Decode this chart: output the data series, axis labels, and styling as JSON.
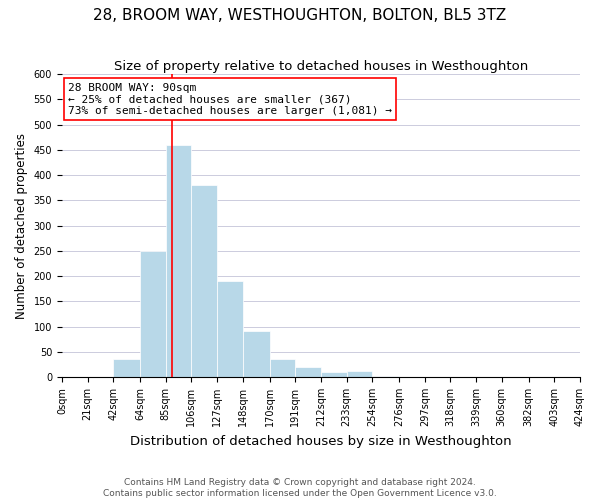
{
  "title": "28, BROOM WAY, WESTHOUGHTON, BOLTON, BL5 3TZ",
  "subtitle": "Size of property relative to detached houses in Westhoughton",
  "xlabel": "Distribution of detached houses by size in Westhoughton",
  "ylabel": "Number of detached properties",
  "footnote1": "Contains HM Land Registry data © Crown copyright and database right 2024.",
  "footnote2": "Contains public sector information licensed under the Open Government Licence v3.0.",
  "bin_edges": [
    0,
    21,
    42,
    64,
    85,
    106,
    127,
    148,
    170,
    191,
    212,
    233,
    254,
    276,
    297,
    318,
    339,
    360,
    382,
    403,
    424
  ],
  "bin_labels": [
    "0sqm",
    "21sqm",
    "42sqm",
    "64sqm",
    "85sqm",
    "106sqm",
    "127sqm",
    "148sqm",
    "170sqm",
    "191sqm",
    "212sqm",
    "233sqm",
    "254sqm",
    "276sqm",
    "297sqm",
    "318sqm",
    "339sqm",
    "360sqm",
    "382sqm",
    "403sqm",
    "424sqm"
  ],
  "counts": [
    0,
    0,
    35,
    250,
    460,
    380,
    190,
    92,
    35,
    20,
    10,
    13,
    3,
    0,
    0,
    0,
    0,
    0,
    0,
    0
  ],
  "bar_color": "#b8d8e8",
  "vline_x": 90,
  "vline_color": "red",
  "annotation_line1": "28 BROOM WAY: 90sqm",
  "annotation_line2": "← 25% of detached houses are smaller (367)",
  "annotation_line3": "73% of semi-detached houses are larger (1,081) →",
  "annotation_box_color": "white",
  "annotation_box_edgecolor": "red",
  "ylim": [
    0,
    600
  ],
  "yticks": [
    0,
    50,
    100,
    150,
    200,
    250,
    300,
    350,
    400,
    450,
    500,
    550,
    600
  ],
  "grid_color": "#ccccdd",
  "title_fontsize": 11,
  "subtitle_fontsize": 9.5,
  "xlabel_fontsize": 9.5,
  "ylabel_fontsize": 8.5,
  "tick_fontsize": 7,
  "annotation_fontsize": 8,
  "footnote_fontsize": 6.5
}
